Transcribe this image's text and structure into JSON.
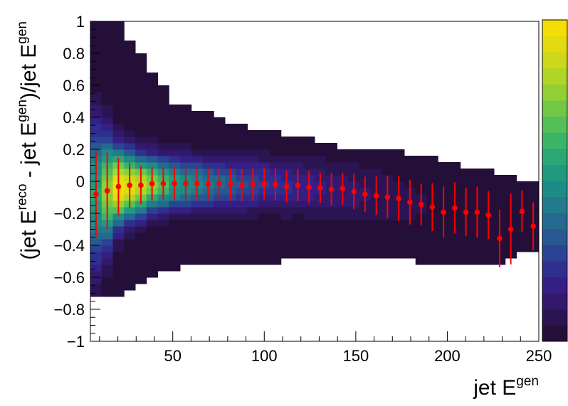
{
  "chart_data": {
    "type": "heatmap",
    "title": "",
    "xlabel": {
      "base": "jet E",
      "sup": "gen"
    },
    "ylabel": {
      "p1": "(jet E",
      "s1": "reco",
      "p2": " - jet E",
      "s2": "gen",
      "p3": ")/jet E",
      "s3": "gen"
    },
    "xlim": [
      5,
      250
    ],
    "ylim": [
      -1,
      1
    ],
    "x_ticks": [
      50,
      100,
      150,
      200,
      250
    ],
    "y_ticks": [
      -1,
      -0.8,
      -0.6,
      -0.4,
      -0.2,
      0,
      0.2,
      0.4,
      0.6,
      0.8,
      1
    ],
    "n_xbins": 40,
    "n_ybins": 50,
    "histogram_envelope": {
      "x": [
        8,
        20,
        35,
        50,
        70,
        90,
        110,
        130,
        150,
        170,
        190,
        210,
        230,
        248
      ],
      "upper": [
        1.0,
        1.0,
        0.75,
        0.5,
        0.42,
        0.34,
        0.3,
        0.25,
        0.2,
        0.2,
        0.15,
        0.1,
        0.05,
        0.0
      ],
      "lower": [
        -0.7,
        -0.74,
        -0.62,
        -0.55,
        -0.52,
        -0.5,
        -0.5,
        -0.48,
        -0.46,
        -0.48,
        -0.52,
        -0.5,
        -0.5,
        -0.42
      ],
      "peak_intensity": [
        0.55,
        1.0,
        0.85,
        0.55,
        0.4,
        0.3,
        0.22,
        0.16,
        0.12,
        0.08,
        0.05,
        0.03,
        0.02,
        0.01
      ],
      "sigma": [
        0.3,
        0.16,
        0.12,
        0.11,
        0.11,
        0.11,
        0.11,
        0.12,
        0.13,
        0.14,
        0.15,
        0.16,
        0.18,
        0.18
      ]
    },
    "profile": {
      "color": "#ff0000",
      "mean": [
        -0.081,
        -0.059,
        -0.033,
        -0.024,
        -0.024,
        -0.015,
        -0.015,
        -0.015,
        -0.015,
        -0.015,
        -0.019,
        -0.015,
        -0.019,
        -0.024,
        -0.019,
        -0.015,
        -0.019,
        -0.033,
        -0.024,
        -0.037,
        -0.041,
        -0.05,
        -0.046,
        -0.064,
        -0.081,
        -0.09,
        -0.099,
        -0.108,
        -0.13,
        -0.144,
        -0.161,
        -0.193,
        -0.166,
        -0.193,
        -0.193,
        -0.21,
        -0.357,
        -0.299,
        -0.188,
        -0.281
      ],
      "error": [
        0.27,
        0.24,
        0.18,
        0.14,
        0.12,
        0.105,
        0.1,
        0.1,
        0.1,
        0.1,
        0.1,
        0.1,
        0.1,
        0.1,
        0.1,
        0.1,
        0.1,
        0.1,
        0.1,
        0.1,
        0.096,
        0.1,
        0.1,
        0.11,
        0.11,
        0.12,
        0.13,
        0.14,
        0.14,
        0.13,
        0.15,
        0.16,
        0.16,
        0.15,
        0.16,
        0.15,
        0.18,
        0.22,
        0.13,
        0.15
      ]
    },
    "palette": [
      "#240f38",
      "#2b1452",
      "#32196b",
      "#351f85",
      "#2f2f8f",
      "#2a4392",
      "#275892",
      "#246a8f",
      "#227b8b",
      "#1f8b86",
      "#21997f",
      "#2aa775",
      "#3cb468",
      "#55bf58",
      "#72c846",
      "#91cf34",
      "#afd526",
      "#cbd81c",
      "#e3da12",
      "#f5dd08"
    ],
    "colorbar": "right"
  }
}
